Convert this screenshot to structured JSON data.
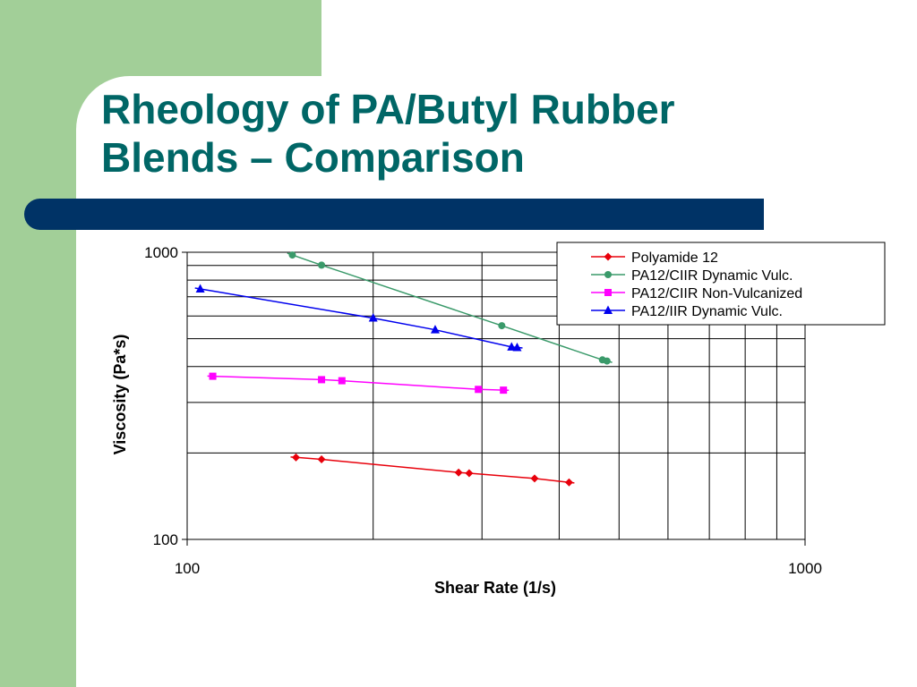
{
  "slide": {
    "title_line1": "Rheology of PA/Butyl Rubber",
    "title_line2": "Blends – Comparison",
    "colors": {
      "background": "#a2cf98",
      "title": "#006666",
      "bar": "#003366"
    }
  },
  "chart_data": {
    "type": "line",
    "xlabel": "Shear Rate (1/s)",
    "ylabel": "Viscosity (Pa*s)",
    "x_scale": "log",
    "y_scale": "log",
    "xlim": [
      100,
      1000
    ],
    "ylim": [
      100,
      1000
    ],
    "x_ticks": [
      "100",
      "1000"
    ],
    "y_ticks": [
      "100",
      "1000"
    ],
    "grid": true,
    "legend_position": "top-right",
    "series": [
      {
        "name": "Polyamide 12",
        "color": "#e8000b",
        "marker": "diamond",
        "x": [
          150,
          165,
          275,
          286,
          365,
          415
        ],
        "y": [
          193,
          190,
          171,
          170,
          163,
          158
        ]
      },
      {
        "name": "PA12/CIIR Dynamic Vulc.",
        "color": "#3a9a6a",
        "marker": "circle",
        "x": [
          148,
          165,
          323,
          470,
          478
        ],
        "y": [
          978,
          902,
          555,
          422,
          418
        ]
      },
      {
        "name": "PA12/CIIR Non-Vulcanized",
        "color": "#ff00ff",
        "marker": "square",
        "x": [
          110,
          165,
          178,
          296,
          325
        ],
        "y": [
          370,
          360,
          357,
          333,
          331
        ]
      },
      {
        "name": "PA12/IIR Dynamic Vulc.",
        "color": "#0000ee",
        "marker": "triangle",
        "x": [
          105,
          200,
          252,
          335,
          342
        ],
        "y": [
          745,
          590,
          537,
          468,
          466
        ]
      }
    ]
  }
}
